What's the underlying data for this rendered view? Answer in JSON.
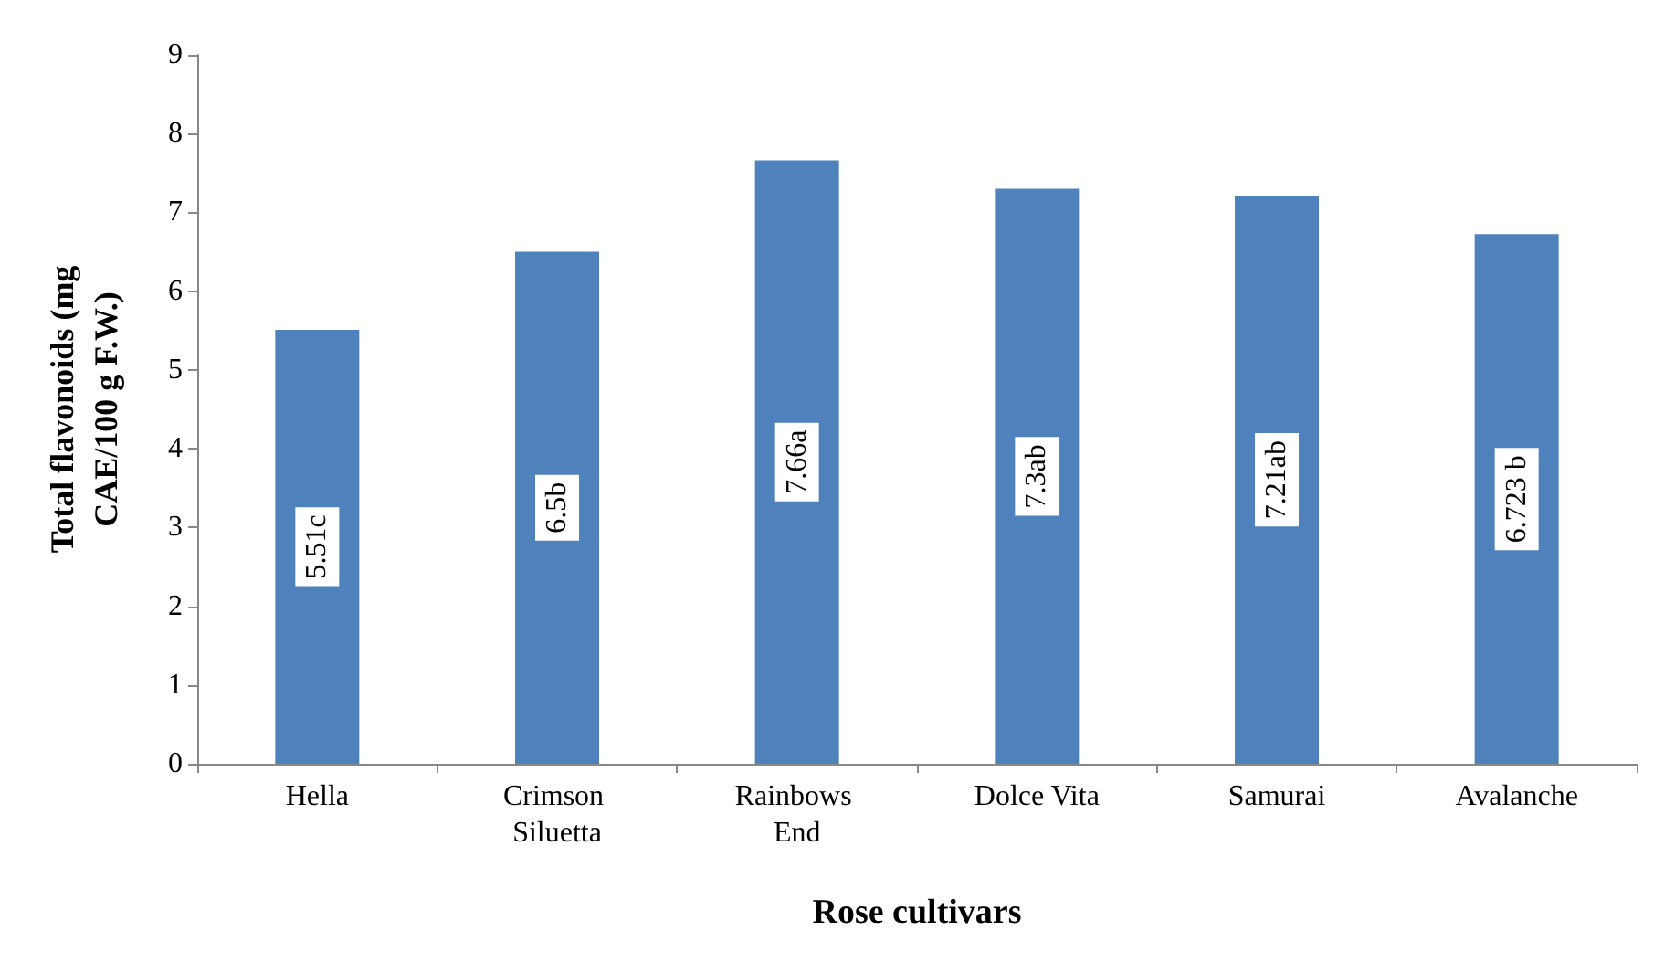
{
  "chart_data": {
    "type": "bar",
    "xlabel": "Rose cultivars",
    "ylabel": "Total flavonoids (mg CAE/100 g F.W.)",
    "categories": [
      "Hella",
      "Crimson Siluetta",
      "Rainbows End",
      "Dolce Vita",
      "Samurai",
      "Avalanche"
    ],
    "values": [
      5.51,
      6.5,
      7.66,
      7.3,
      7.21,
      6.723
    ],
    "value_labels": [
      "5.51c",
      "6.5b",
      "7.66a",
      "7.3ab",
      "7.21ab",
      "6.723 b"
    ],
    "color": "#4f81bd",
    "ylim": [
      0,
      9
    ],
    "yticks": [
      0,
      1,
      2,
      3,
      4,
      5,
      6,
      7,
      8,
      9
    ]
  }
}
